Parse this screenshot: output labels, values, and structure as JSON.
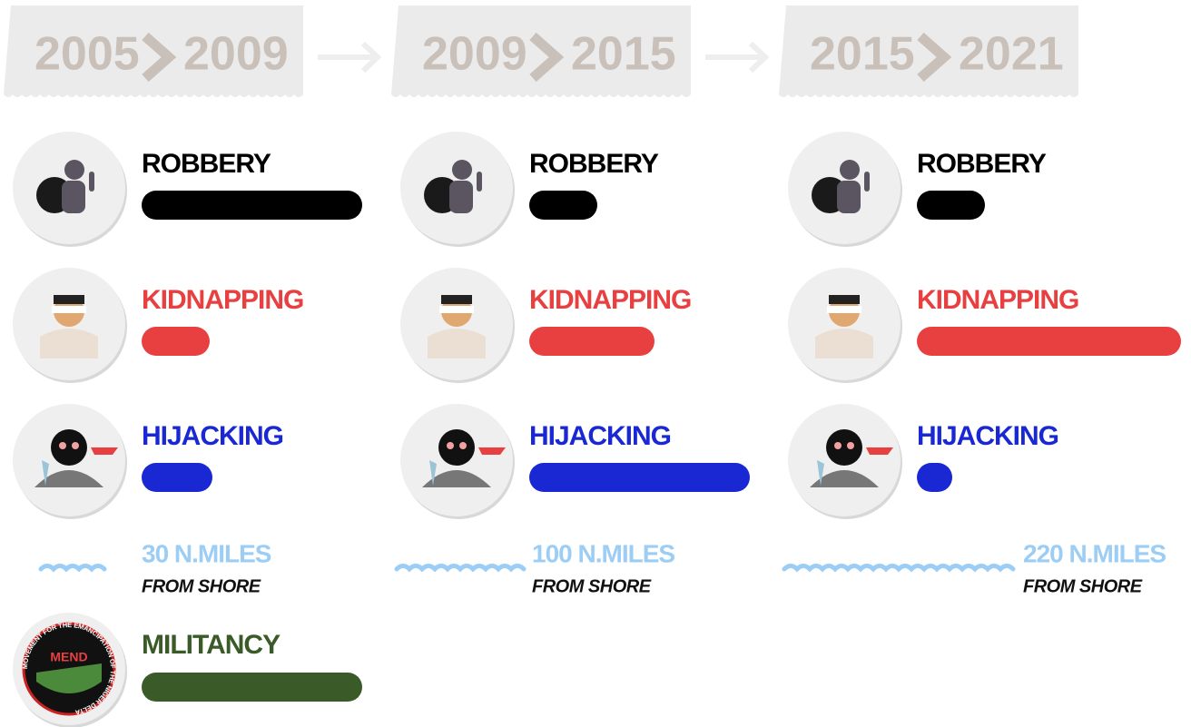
{
  "chart_data": {
    "type": "bar",
    "xlim": [
      0,
      100
    ],
    "periods": [
      {
        "from": "2005",
        "to": "2009",
        "rows": [
          {
            "label": "ROBBERY",
            "color": "#000000",
            "value": 81
          },
          {
            "label": "KIDNAPPING",
            "color": "#e84040",
            "value": 25
          },
          {
            "label": "HIJACKING",
            "color": "#1a28d4",
            "value": 26
          }
        ],
        "distance": 30,
        "distance_label": "30 N.MILES",
        "distance_note": "FROM SHORE",
        "extra": {
          "label": "MILITANCY",
          "color": "#3a5a28",
          "value": 81,
          "logo_text": "MEND",
          "logo_ring": "MOVEMENT FOR THE EMANCIPATION OF THE NIGER DELTA"
        }
      },
      {
        "from": "2009",
        "to": "2015",
        "rows": [
          {
            "label": "ROBBERY",
            "color": "#000000",
            "value": 25
          },
          {
            "label": "KIDNAPPING",
            "color": "#e84040",
            "value": 46
          },
          {
            "label": "HIJACKING",
            "color": "#1a28d4",
            "value": 81
          }
        ],
        "distance": 100,
        "distance_label": "100 N.MILES",
        "distance_note": "FROM SHORE"
      },
      {
        "from": "2015",
        "to": "2021",
        "rows": [
          {
            "label": "ROBBERY",
            "color": "#000000",
            "value": 25
          },
          {
            "label": "KIDNAPPING",
            "color": "#e84040",
            "value": 97
          },
          {
            "label": "HIJACKING",
            "color": "#1a28d4",
            "value": 13
          }
        ],
        "distance": 220,
        "distance_label": "220 N.MILES",
        "distance_note": "FROM SHORE"
      }
    ]
  }
}
